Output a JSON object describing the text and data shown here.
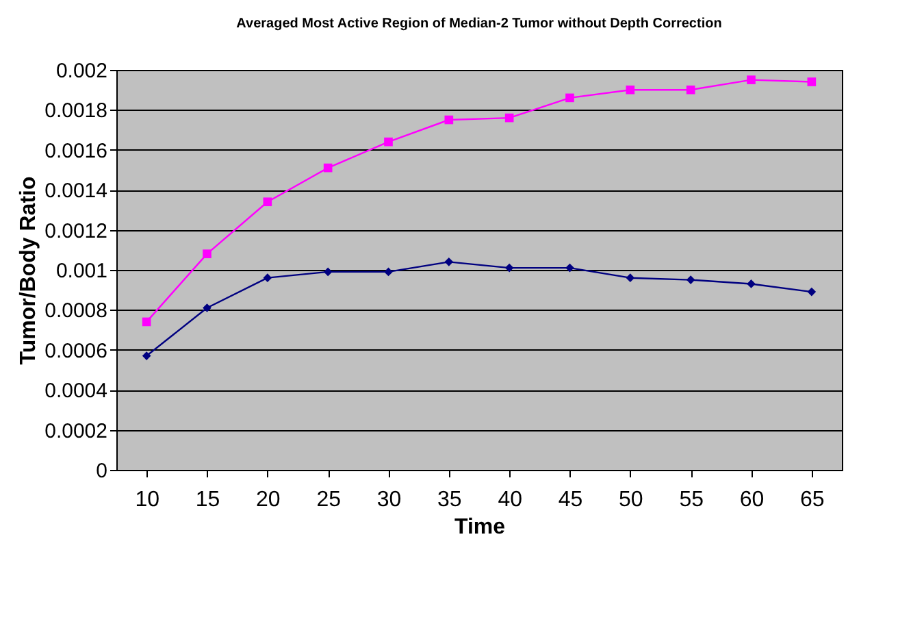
{
  "chart_data": {
    "type": "line",
    "title": "Averaged Most Active Region of Median-2 Tumor without Depth Correction",
    "xlabel": "Time",
    "ylabel": "Tumor/Body Ratio",
    "categories": [
      "10",
      "15",
      "20",
      "25",
      "30",
      "35",
      "40",
      "45",
      "50",
      "55",
      "60",
      "65"
    ],
    "series": [
      {
        "color": "#ff00ff",
        "marker": "square",
        "values": [
          0.00074,
          0.00108,
          0.00134,
          0.00151,
          0.00164,
          0.00175,
          0.00176,
          0.00186,
          0.0019,
          0.0019,
          0.00195,
          0.00194
        ]
      },
      {
        "color": "#000080",
        "marker": "diamond",
        "values": [
          0.00057,
          0.00081,
          0.00096,
          0.00099,
          0.00099,
          0.00104,
          0.00101,
          0.00101,
          0.00096,
          0.00095,
          0.00093,
          0.00089
        ]
      }
    ],
    "ylim": [
      0,
      0.002
    ],
    "yticks": [
      0,
      0.0002,
      0.0004,
      0.0006,
      0.0008,
      0.001,
      0.0012,
      0.0014,
      0.0016,
      0.0018,
      0.002
    ],
    "grid": "y"
  }
}
